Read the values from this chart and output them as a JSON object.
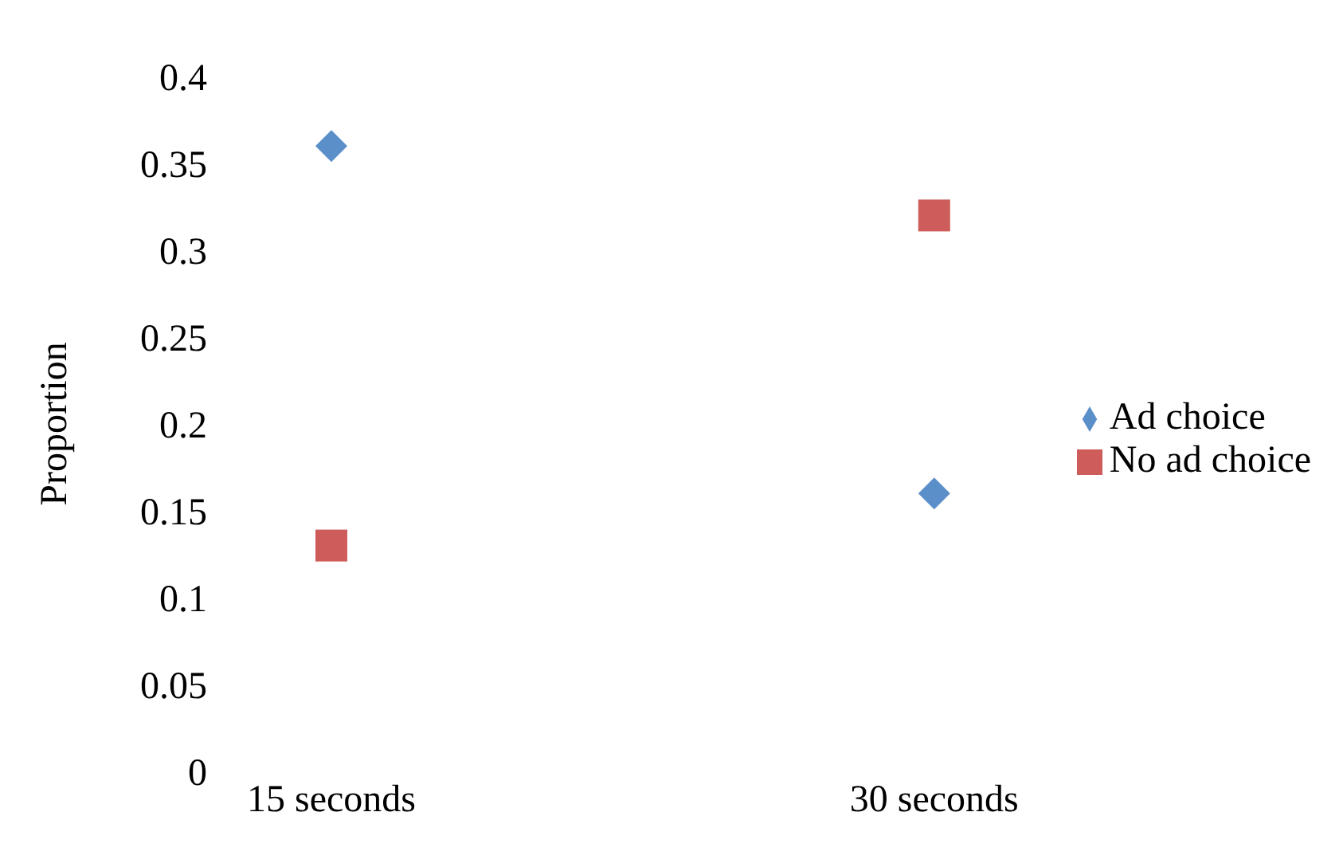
{
  "chart_data": {
    "type": "scatter",
    "ylabel": "Proportion",
    "categories": [
      "15 seconds",
      "30 seconds"
    ],
    "series": [
      {
        "name": "Ad choice",
        "color": "#5b8fc9",
        "marker": "diamond",
        "values": [
          0.36,
          0.16
        ]
      },
      {
        "name": "No ad choice",
        "color": "#cd5c5a",
        "marker": "square",
        "values": [
          0.13,
          0.32
        ]
      }
    ],
    "ylim": [
      0,
      0.4
    ],
    "yticks": [
      0,
      0.05,
      0.1,
      0.15,
      0.2,
      0.25,
      0.3,
      0.35,
      0.4
    ],
    "grid": false,
    "legend": "right"
  }
}
